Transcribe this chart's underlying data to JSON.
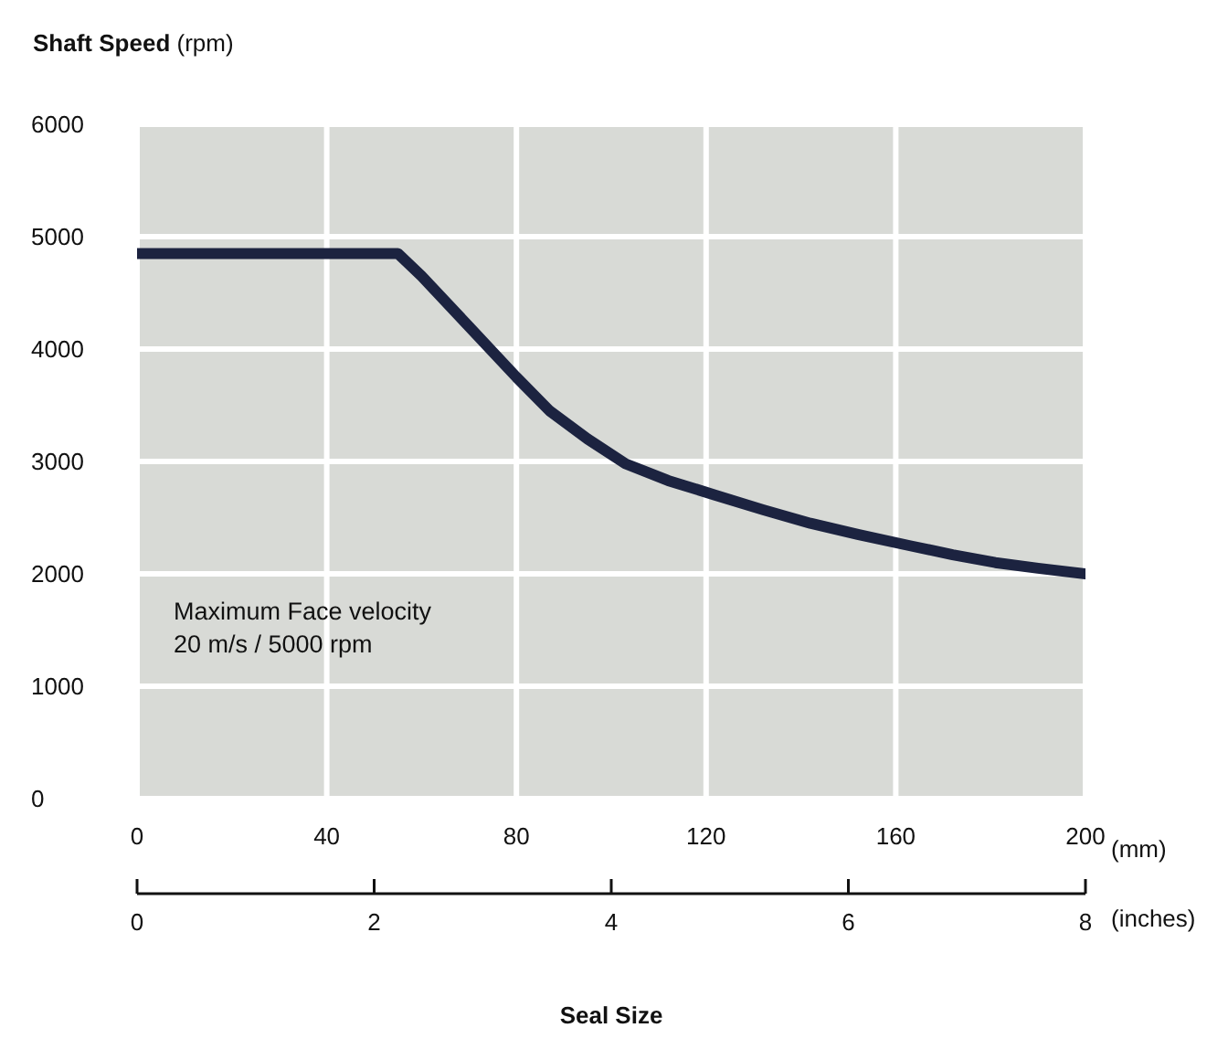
{
  "chart_data": {
    "type": "line",
    "ylabel": "Shaft Speed (rpm)",
    "xlabel": "Seal Size",
    "x": [
      0,
      20,
      40,
      55,
      60,
      70,
      80,
      87,
      95,
      103,
      112,
      122,
      132,
      142,
      152,
      163,
      172,
      181,
      190,
      200
    ],
    "series": [
      {
        "color": "#1c2340",
        "values": [
          4850,
          4850,
          4850,
          4850,
          4650,
          4200,
          3750,
          3450,
          3200,
          2980,
          2830,
          2700,
          2570,
          2450,
          2350,
          2250,
          2170,
          2100,
          2050,
          2000
        ]
      }
    ],
    "xlim": [
      0,
      200
    ],
    "xticks": [
      0,
      40,
      80,
      120,
      160,
      {
        "value": 200,
        "label": "200"
      }
    ],
    "x2lim": [
      0,
      8
    ],
    "x2ticks": [
      0,
      2,
      4,
      6,
      8
    ],
    "ylim": [
      0,
      6000
    ],
    "yticks": [
      0,
      1000,
      2000,
      3000,
      4000,
      5000,
      6000
    ],
    "grid": true,
    "legend": false,
    "marker": "none",
    "line_style": "solid",
    "annotations": [
      "Maximum Face velocity",
      "20 m/s / 5000 rpm",
      "(mm)",
      "(inches)"
    ]
  }
}
